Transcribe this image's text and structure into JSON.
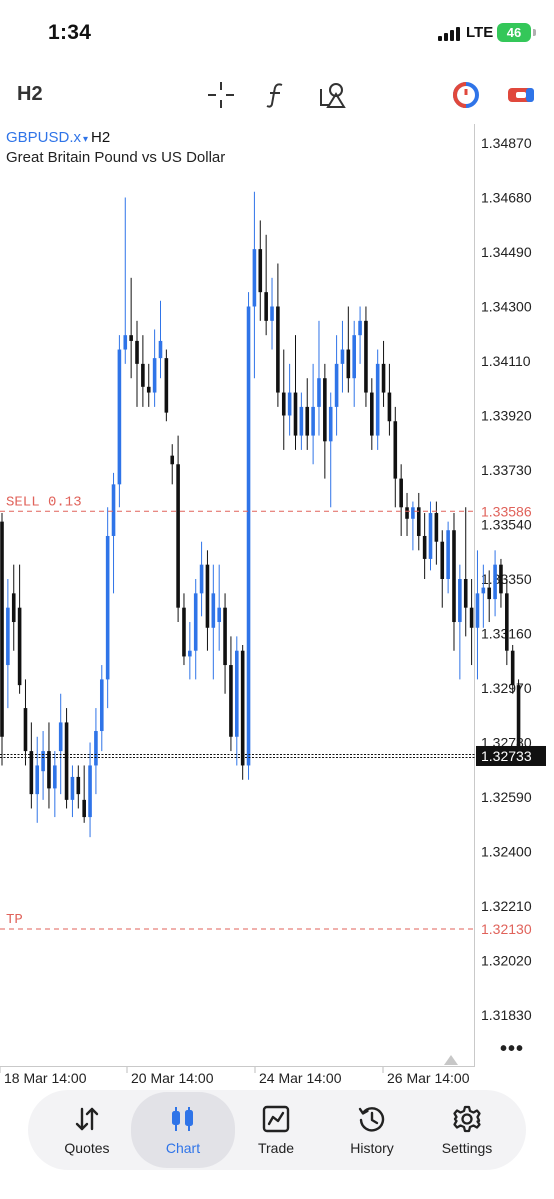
{
  "status_bar": {
    "time": "1:34",
    "network": "LTE",
    "battery": "46"
  },
  "toolbar": {
    "timeframe": "H2",
    "icons": [
      "crosshair-icon",
      "function-icon",
      "objects-icon",
      "one-click-trading-icon",
      "trade-toggle-icon"
    ]
  },
  "chart": {
    "symbol": "GBPUSD.x",
    "symbol_caret": "▾",
    "timeframe": "H2",
    "description": "Great Britain Pound vs US Dollar",
    "price_labels": [
      "1.34870",
      "1.34680",
      "1.34490",
      "1.34300",
      "1.34110",
      "1.33920",
      "1.33730",
      "1.33540",
      "1.33350",
      "1.33160",
      "1.32970",
      "1.32780",
      "1.32590",
      "1.32400",
      "1.32210",
      "1.32020",
      "1.31830"
    ],
    "time_labels": [
      "18 Mar 14:00",
      "20 Mar 14:00",
      "24 Mar 14:00",
      "26 Mar 14:00"
    ],
    "sell_label": "SELL 0.13",
    "sell_price": "1.33586",
    "tp_label": "TP",
    "tp_price": "1.32130",
    "current_price": "1.32733",
    "colors": {
      "bull": "#2f74e8",
      "bear": "#111111",
      "order_line": "#e0625a",
      "grid_text": "#222222"
    }
  },
  "chart_data": {
    "type": "candlestick",
    "symbol": "GBPUSD.x",
    "timeframe": "H2",
    "ylim": [
      1.3175,
      1.3495
    ],
    "y_ticks": [
      1.3487,
      1.3468,
      1.3449,
      1.343,
      1.3411,
      1.3392,
      1.3373,
      1.3354,
      1.3335,
      1.3316,
      1.3297,
      1.3278,
      1.3259,
      1.324,
      1.3221,
      1.3202,
      1.3183
    ],
    "x_tick_labels": [
      "18 Mar 14:00",
      "20 Mar 14:00",
      "24 Mar 14:00",
      "26 Mar 14:00"
    ],
    "order_lines": [
      {
        "name": "SELL 0.13",
        "price": 1.33586
      },
      {
        "name": "TP",
        "price": 1.3213
      }
    ],
    "current_price": 1.32733,
    "ohlc": [
      [
        1.3355,
        1.3358,
        1.327,
        1.328
      ],
      [
        1.3305,
        1.3335,
        1.329,
        1.3325
      ],
      [
        1.333,
        1.334,
        1.331,
        1.332
      ],
      [
        1.3325,
        1.334,
        1.3295,
        1.3298
      ],
      [
        1.329,
        1.33,
        1.327,
        1.3275
      ],
      [
        1.3275,
        1.3285,
        1.3255,
        1.326
      ],
      [
        1.326,
        1.328,
        1.325,
        1.327
      ],
      [
        1.3268,
        1.3282,
        1.3258,
        1.3275
      ],
      [
        1.3275,
        1.3285,
        1.3255,
        1.3262
      ],
      [
        1.3262,
        1.3275,
        1.3252,
        1.327
      ],
      [
        1.3275,
        1.3295,
        1.326,
        1.3285
      ],
      [
        1.3285,
        1.329,
        1.3255,
        1.3258
      ],
      [
        1.3258,
        1.327,
        1.3252,
        1.3266
      ],
      [
        1.3266,
        1.327,
        1.3255,
        1.326
      ],
      [
        1.3258,
        1.327,
        1.325,
        1.3252
      ],
      [
        1.3252,
        1.3278,
        1.3245,
        1.327
      ],
      [
        1.327,
        1.329,
        1.326,
        1.3282
      ],
      [
        1.3282,
        1.3305,
        1.3275,
        1.33
      ],
      [
        1.33,
        1.336,
        1.329,
        1.335
      ],
      [
        1.335,
        1.3372,
        1.333,
        1.3368
      ],
      [
        1.3368,
        1.342,
        1.336,
        1.3415
      ],
      [
        1.3415,
        1.3468,
        1.341,
        1.342
      ],
      [
        1.342,
        1.344,
        1.3405,
        1.3418
      ],
      [
        1.3418,
        1.3425,
        1.3395,
        1.341
      ],
      [
        1.341,
        1.342,
        1.3395,
        1.3402
      ],
      [
        1.3402,
        1.341,
        1.3395,
        1.34
      ],
      [
        1.34,
        1.3422,
        1.3395,
        1.3412
      ],
      [
        1.3412,
        1.3432,
        1.3405,
        1.3418
      ],
      [
        1.3412,
        1.3415,
        1.339,
        1.3393
      ],
      [
        1.3378,
        1.3382,
        1.3368,
        1.3375
      ],
      [
        1.3375,
        1.3385,
        1.332,
        1.3325
      ],
      [
        1.3325,
        1.333,
        1.3305,
        1.3308
      ],
      [
        1.3308,
        1.332,
        1.33,
        1.331
      ],
      [
        1.331,
        1.3335,
        1.33,
        1.333
      ],
      [
        1.333,
        1.3348,
        1.3322,
        1.334
      ],
      [
        1.334,
        1.3345,
        1.331,
        1.3318
      ],
      [
        1.3318,
        1.334,
        1.33,
        1.333
      ],
      [
        1.332,
        1.334,
        1.331,
        1.3325
      ],
      [
        1.3325,
        1.333,
        1.3295,
        1.3305
      ],
      [
        1.3305,
        1.3315,
        1.3275,
        1.328
      ],
      [
        1.328,
        1.3315,
        1.327,
        1.331
      ],
      [
        1.331,
        1.3312,
        1.3265,
        1.327
      ],
      [
        1.327,
        1.3435,
        1.3265,
        1.343
      ],
      [
        1.343,
        1.347,
        1.3405,
        1.345
      ],
      [
        1.345,
        1.346,
        1.3425,
        1.3435
      ],
      [
        1.3435,
        1.3455,
        1.342,
        1.3425
      ],
      [
        1.3425,
        1.344,
        1.3415,
        1.343
      ],
      [
        1.343,
        1.3445,
        1.3395,
        1.34
      ],
      [
        1.34,
        1.3415,
        1.338,
        1.3392
      ],
      [
        1.3392,
        1.341,
        1.3385,
        1.34
      ],
      [
        1.34,
        1.342,
        1.338,
        1.3385
      ],
      [
        1.3385,
        1.34,
        1.338,
        1.3395
      ],
      [
        1.3395,
        1.3405,
        1.338,
        1.3385
      ],
      [
        1.3385,
        1.341,
        1.3375,
        1.3395
      ],
      [
        1.3395,
        1.3425,
        1.3385,
        1.3405
      ],
      [
        1.3405,
        1.341,
        1.337,
        1.3383
      ],
      [
        1.3383,
        1.34,
        1.336,
        1.3395
      ],
      [
        1.3395,
        1.342,
        1.3385,
        1.341
      ],
      [
        1.341,
        1.3425,
        1.34,
        1.3415
      ],
      [
        1.3415,
        1.343,
        1.34,
        1.3405
      ],
      [
        1.3405,
        1.3425,
        1.3395,
        1.342
      ],
      [
        1.342,
        1.343,
        1.341,
        1.3425
      ],
      [
        1.3425,
        1.343,
        1.3395,
        1.34
      ],
      [
        1.34,
        1.3405,
        1.338,
        1.3385
      ],
      [
        1.3385,
        1.3415,
        1.338,
        1.341
      ],
      [
        1.341,
        1.3418,
        1.3395,
        1.34
      ],
      [
        1.34,
        1.341,
        1.3385,
        1.339
      ],
      [
        1.339,
        1.3395,
        1.336,
        1.337
      ],
      [
        1.337,
        1.3375,
        1.335,
        1.336
      ],
      [
        1.336,
        1.3365,
        1.335,
        1.3356
      ],
      [
        1.3356,
        1.3362,
        1.3345,
        1.336
      ],
      [
        1.336,
        1.3365,
        1.3345,
        1.335
      ],
      [
        1.335,
        1.3358,
        1.3335,
        1.3342
      ],
      [
        1.3342,
        1.3362,
        1.3338,
        1.3358
      ],
      [
        1.3358,
        1.3362,
        1.334,
        1.3348
      ],
      [
        1.3348,
        1.3352,
        1.3325,
        1.3335
      ],
      [
        1.3335,
        1.3355,
        1.333,
        1.3352
      ],
      [
        1.3352,
        1.3358,
        1.331,
        1.332
      ],
      [
        1.332,
        1.334,
        1.33,
        1.3335
      ],
      [
        1.3335,
        1.336,
        1.3315,
        1.3325
      ],
      [
        1.3325,
        1.3335,
        1.3305,
        1.3318
      ],
      [
        1.3318,
        1.3345,
        1.33,
        1.333
      ],
      [
        1.333,
        1.334,
        1.3318,
        1.3332
      ],
      [
        1.3332,
        1.3338,
        1.332,
        1.3328
      ],
      [
        1.3328,
        1.3345,
        1.3322,
        1.334
      ],
      [
        1.334,
        1.3342,
        1.3325,
        1.333
      ],
      [
        1.333,
        1.3335,
        1.3305,
        1.331
      ],
      [
        1.331,
        1.3312,
        1.3295,
        1.3298
      ],
      [
        1.3298,
        1.33,
        1.3272,
        1.3273
      ]
    ]
  },
  "tabs": [
    {
      "label": "Quotes",
      "icon": "quotes-icon",
      "active": false
    },
    {
      "label": "Chart",
      "icon": "chart-icon",
      "active": true
    },
    {
      "label": "Trade",
      "icon": "trade-icon",
      "active": false
    },
    {
      "label": "History",
      "icon": "history-icon",
      "active": false
    },
    {
      "label": "Settings",
      "icon": "settings-icon",
      "active": false
    }
  ],
  "more_label": "•••"
}
